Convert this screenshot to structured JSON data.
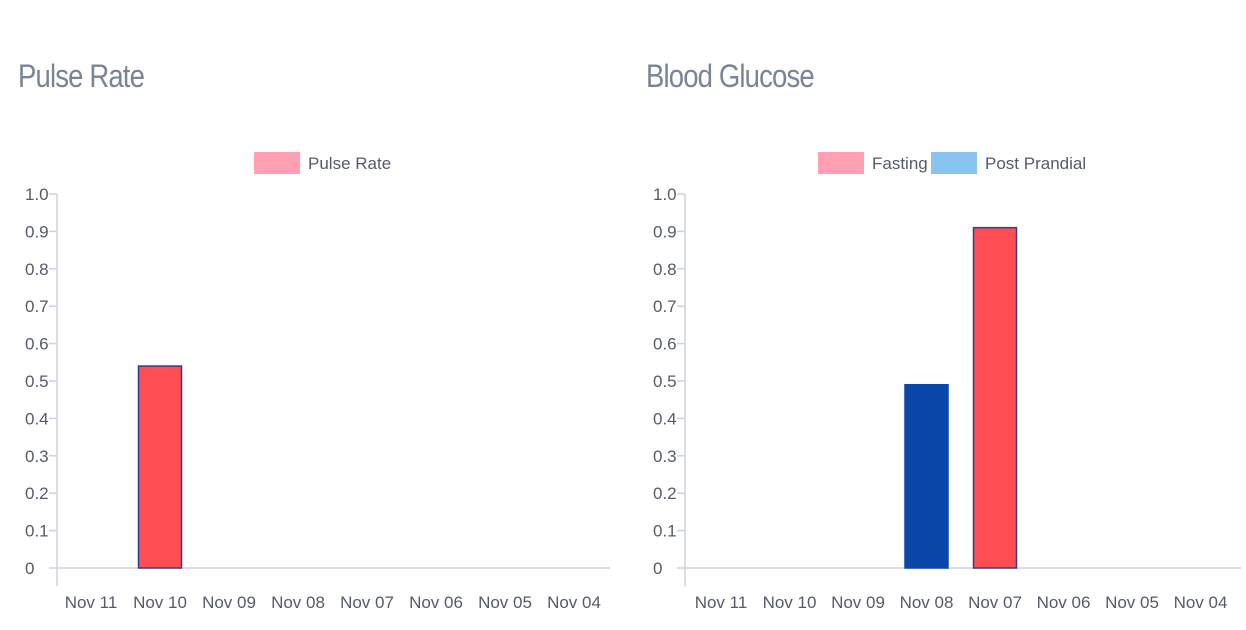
{
  "chart_data": [
    {
      "type": "bar",
      "title": "Pulse Rate",
      "categories": [
        "Nov 11",
        "Nov 10",
        "Nov 09",
        "Nov 08",
        "Nov 07",
        "Nov 06",
        "Nov 05",
        "Nov 04"
      ],
      "series": [
        {
          "name": "Pulse Rate",
          "legend_color": "#ffa0b4",
          "bar_color": "#ff4f52",
          "border_color": "#2e3f8f",
          "values": [
            0,
            0.54,
            0,
            0,
            0,
            0,
            0,
            0
          ]
        }
      ],
      "ylim": [
        0,
        1.0
      ],
      "yticks": [
        "0",
        "0.1",
        "0.2",
        "0.3",
        "0.4",
        "0.5",
        "0.6",
        "0.7",
        "0.8",
        "0.9",
        "1.0"
      ],
      "legend": "top-center",
      "grid": false
    },
    {
      "type": "bar",
      "title": "Blood Glucose",
      "categories": [
        "Nov 11",
        "Nov 10",
        "Nov 09",
        "Nov 08",
        "Nov 07",
        "Nov 06",
        "Nov 05",
        "Nov 04"
      ],
      "series": [
        {
          "name": "Fasting",
          "legend_color": "#ffa0b4",
          "bar_color": "#ff4f52",
          "border_color": "#2e3f8f",
          "values": [
            0,
            0,
            0,
            0,
            0.91,
            0,
            0,
            0
          ]
        },
        {
          "name": "Post Prandial",
          "legend_color": "#88c4f0",
          "bar_color": "#0a47a8",
          "border_color": "#0a47a8",
          "values": [
            0,
            0,
            0,
            0.49,
            0,
            0,
            0,
            0
          ]
        }
      ],
      "ylim": [
        0,
        1.0
      ],
      "yticks": [
        "0",
        "0.1",
        "0.2",
        "0.3",
        "0.4",
        "0.5",
        "0.6",
        "0.7",
        "0.8",
        "0.9",
        "1.0"
      ],
      "legend": "top-center",
      "grid": false
    }
  ]
}
